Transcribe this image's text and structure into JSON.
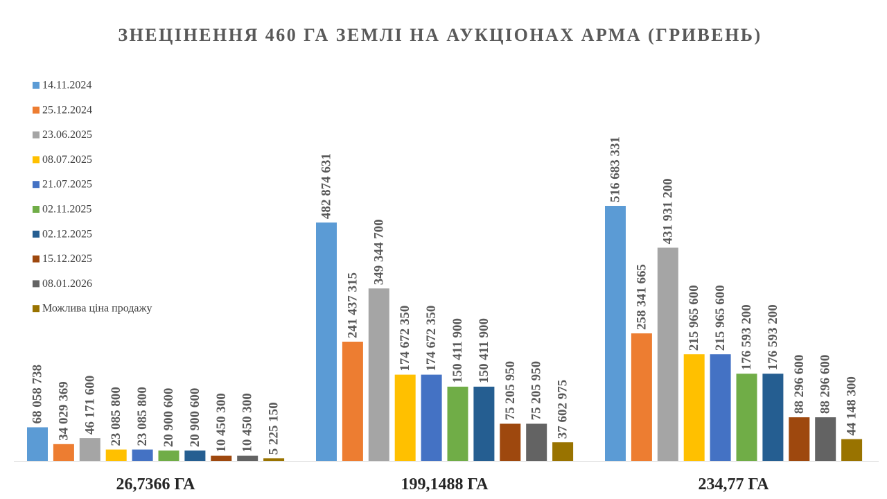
{
  "chart_data": {
    "type": "bar",
    "title": "ЗНЕЦІНЕННЯ 460 ГА ЗЕМЛІ НА АУКЦІОНАХ АРМА (ГРИВЕНЬ)",
    "xlabel": "",
    "ylabel": "",
    "categories": [
      "26,7366 ГА",
      "199,1488 ГА",
      "234,77 ГА"
    ],
    "ylim": [
      0,
      550000000
    ],
    "grid": false,
    "legend_position": "left",
    "series": [
      {
        "name": "14.11.2024",
        "color": "#5B9BD5",
        "values": [
          68058738,
          482874631,
          516683331
        ],
        "labels": [
          "68 058 738",
          "482 874 631",
          "516 683 331"
        ]
      },
      {
        "name": "25.12.2024",
        "color": "#ED7D31",
        "values": [
          34029369,
          241437315,
          258341665
        ],
        "labels": [
          "34 029 369",
          "241 437 315",
          "258 341 665"
        ]
      },
      {
        "name": "23.06.2025",
        "color": "#A5A5A5",
        "values": [
          46171600,
          349344700,
          431931200
        ],
        "labels": [
          "46 171 600",
          "349 344 700",
          "431 931 200"
        ]
      },
      {
        "name": "08.07.2025",
        "color": "#FFC000",
        "values": [
          23085800,
          174672350,
          215965600
        ],
        "labels": [
          "23 085 800",
          "174 672 350",
          "215 965 600"
        ]
      },
      {
        "name": "21.07.2025",
        "color": "#4472C4",
        "values": [
          23085800,
          174672350,
          215965600
        ],
        "labels": [
          "23 085 800",
          "174 672 350",
          "215 965 600"
        ]
      },
      {
        "name": "02.11.2025",
        "color": "#70AD47",
        "values": [
          20900600,
          150411900,
          176593200
        ],
        "labels": [
          "20 900 600",
          "150 411 900",
          "176 593 200"
        ]
      },
      {
        "name": "02.12.2025",
        "color": "#255E91",
        "values": [
          20900600,
          150411900,
          176593200
        ],
        "labels": [
          "20 900 600",
          "150 411 900",
          "176 593 200"
        ]
      },
      {
        "name": "15.12.2025",
        "color": "#9E480E",
        "values": [
          10450300,
          75205950,
          88296600
        ],
        "labels": [
          "10 450 300",
          "75 205 950",
          "88 296 600"
        ]
      },
      {
        "name": "08.01.2026",
        "color": "#636363",
        "values": [
          10450300,
          75205950,
          88296600
        ],
        "labels": [
          "10 450 300",
          "75 205 950",
          "88 296 600"
        ]
      },
      {
        "name": "Можлива ціна продажу",
        "color": "#997300",
        "values": [
          5225150,
          37602975,
          44148300
        ],
        "labels": [
          "5 225 150",
          "37 602 975",
          "44 148 300"
        ]
      }
    ]
  }
}
